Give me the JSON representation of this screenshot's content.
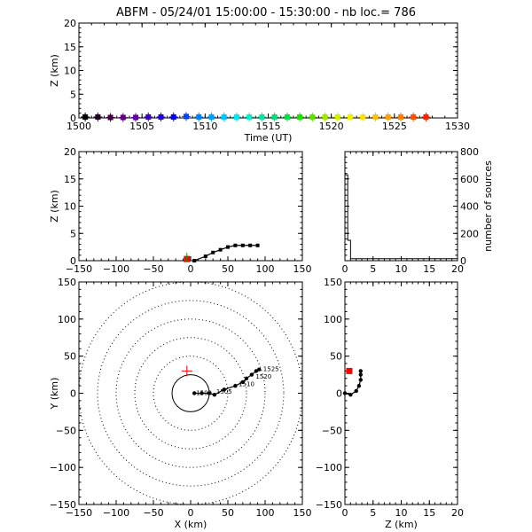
{
  "figure_title": "ABFM - 05/24/01 15:00:00 - 15:30:00 - nb loc.=    786",
  "chart_data": [
    {
      "id": "time_height",
      "type": "scatter",
      "xlabel": "Time (UT)",
      "ylabel": "Z (km)",
      "xlim": [
        1500,
        1530
      ],
      "ylim": [
        0,
        20
      ],
      "xticks": [
        "1500",
        "1505",
        "1510",
        "1515",
        "1520",
        "1525",
        "1530"
      ],
      "yticks": [
        "0",
        "5",
        "10",
        "15",
        "20"
      ],
      "points": [
        {
          "x": 1500.5,
          "y": 0.2,
          "color": "#000000"
        },
        {
          "x": 1501.5,
          "y": 0.2,
          "color": "#200020"
        },
        {
          "x": 1502.5,
          "y": 0.1,
          "color": "#400040"
        },
        {
          "x": 1503.5,
          "y": 0.1,
          "color": "#600080"
        },
        {
          "x": 1504.5,
          "y": 0.1,
          "color": "#6000a0"
        },
        {
          "x": 1505.5,
          "y": 0.2,
          "color": "#4000c0"
        },
        {
          "x": 1506.5,
          "y": 0.2,
          "color": "#2000e0"
        },
        {
          "x": 1507.5,
          "y": 0.2,
          "color": "#0000ff"
        },
        {
          "x": 1508.5,
          "y": 0.3,
          "color": "#0040ff"
        },
        {
          "x": 1509.5,
          "y": 0.2,
          "color": "#0080ff"
        },
        {
          "x": 1510.5,
          "y": 0.2,
          "color": "#00a0ff"
        },
        {
          "x": 1511.5,
          "y": 0.2,
          "color": "#00c8ff"
        },
        {
          "x": 1512.5,
          "y": 0.2,
          "color": "#00e8f0"
        },
        {
          "x": 1513.5,
          "y": 0.2,
          "color": "#00f0d0"
        },
        {
          "x": 1514.5,
          "y": 0.2,
          "color": "#00e8a0"
        },
        {
          "x": 1515.5,
          "y": 0.2,
          "color": "#00e070"
        },
        {
          "x": 1516.5,
          "y": 0.2,
          "color": "#00e040"
        },
        {
          "x": 1517.5,
          "y": 0.2,
          "color": "#20e000"
        },
        {
          "x": 1518.5,
          "y": 0.2,
          "color": "#60e000"
        },
        {
          "x": 1519.5,
          "y": 0.2,
          "color": "#a0e800"
        },
        {
          "x": 1520.5,
          "y": 0.2,
          "color": "#d0f000"
        },
        {
          "x": 1521.5,
          "y": 0.2,
          "color": "#f0f000"
        },
        {
          "x": 1522.5,
          "y": 0.2,
          "color": "#ffe000"
        },
        {
          "x": 1523.5,
          "y": 0.2,
          "color": "#ffc000"
        },
        {
          "x": 1524.5,
          "y": 0.2,
          "color": "#ffa000"
        },
        {
          "x": 1525.5,
          "y": 0.2,
          "color": "#ff8000"
        },
        {
          "x": 1526.5,
          "y": 0.2,
          "color": "#ff5000"
        },
        {
          "x": 1527.5,
          "y": 0.2,
          "color": "#ff2000"
        }
      ]
    },
    {
      "id": "x_height",
      "type": "line",
      "xlabel": "",
      "ylabel": "Z (km)",
      "xlim": [
        -150,
        150
      ],
      "ylim": [
        0,
        20
      ],
      "xticks": [
        "−150",
        "−100",
        "−50",
        "0",
        "50",
        "100",
        "150"
      ],
      "yticks": [
        "0",
        "5",
        "10",
        "15",
        "20"
      ],
      "station": {
        "x": -5,
        "y": 0.3,
        "color": "#ff0000"
      },
      "path": [
        {
          "x": 5,
          "y": 0
        },
        {
          "x": 20,
          "y": 0.8
        },
        {
          "x": 30,
          "y": 1.5
        },
        {
          "x": 40,
          "y": 2
        },
        {
          "x": 50,
          "y": 2.5
        },
        {
          "x": 60,
          "y": 2.8
        },
        {
          "x": 70,
          "y": 2.8
        },
        {
          "x": 80,
          "y": 2.8
        },
        {
          "x": 90,
          "y": 2.8
        }
      ]
    },
    {
      "id": "height_histogram",
      "type": "line",
      "xlabel": "",
      "ylabel": "number of sources",
      "xlim": [
        0,
        20
      ],
      "ylim": [
        0,
        800
      ],
      "xticks": [
        "0",
        "5",
        "10",
        "15",
        "20"
      ],
      "yticks": [
        "0",
        "200",
        "400",
        "600",
        "800"
      ],
      "steps": [
        {
          "x0": 0,
          "x1": 0.5,
          "y": 630
        },
        {
          "x0": 0.5,
          "x1": 1,
          "y": 150
        },
        {
          "x0": 1,
          "x1": 20,
          "y": 15
        }
      ]
    },
    {
      "id": "plan_view",
      "type": "scatter",
      "xlabel": "X (km)",
      "ylabel": "Y (km)",
      "xlim": [
        -150,
        150
      ],
      "ylim": [
        -150,
        150
      ],
      "xticks": [
        "−150",
        "−100",
        "−50",
        "0",
        "50",
        "100",
        "150"
      ],
      "yticks": [
        "−150",
        "−100",
        "−50",
        "0",
        "50",
        "100",
        "150"
      ],
      "range_rings_km": [
        25,
        50,
        75,
        100,
        125,
        150
      ],
      "station": {
        "x": -5,
        "y": 30,
        "color": "#ff0000"
      },
      "path": [
        {
          "x": 5,
          "y": 0
        },
        {
          "x": 15,
          "y": 0
        },
        {
          "x": 25,
          "y": 0
        },
        {
          "x": 32,
          "y": -2
        },
        {
          "x": 45,
          "y": 5
        },
        {
          "x": 60,
          "y": 10
        },
        {
          "x": 70,
          "y": 15
        },
        {
          "x": 75,
          "y": 20
        },
        {
          "x": 82,
          "y": 25
        },
        {
          "x": 88,
          "y": 30
        },
        {
          "x": 92,
          "y": 32
        }
      ],
      "annotations": [
        {
          "text": "1500",
          "x": 5,
          "y": 0
        },
        {
          "text": "1505",
          "x": 32,
          "y": 2
        },
        {
          "text": "1510",
          "x": 62,
          "y": 12
        },
        {
          "text": "1520",
          "x": 85,
          "y": 22
        },
        {
          "text": "1525",
          "x": 95,
          "y": 32
        }
      ]
    },
    {
      "id": "z_y",
      "type": "line",
      "xlabel": "Z (km)",
      "ylabel": "",
      "xlim": [
        0,
        20
      ],
      "ylim": [
        -150,
        150
      ],
      "xticks": [
        "0",
        "5",
        "10",
        "15",
        "20"
      ],
      "yticks": [
        "−150",
        "−100",
        "−50",
        "0",
        "50",
        "100",
        "150"
      ],
      "station": {
        "x": 0.3,
        "y": 30,
        "color": "#ff0000"
      },
      "path": [
        {
          "x": 0,
          "y": 0
        },
        {
          "x": 1,
          "y": -2
        },
        {
          "x": 2,
          "y": 3
        },
        {
          "x": 2.5,
          "y": 10
        },
        {
          "x": 2.8,
          "y": 18
        },
        {
          "x": 2.8,
          "y": 25
        },
        {
          "x": 2.8,
          "y": 30
        }
      ]
    }
  ]
}
